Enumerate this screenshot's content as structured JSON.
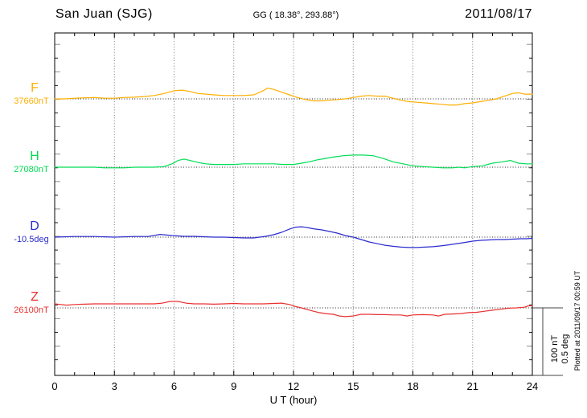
{
  "header": {
    "station": "San Juan (SJG)",
    "coordinates": "GG ( 18.38°, 293.88°)",
    "date": "2011/08/17"
  },
  "x_axis": {
    "title": "U T (hour)",
    "tick_labels": [
      "0",
      "3",
      "6",
      "9",
      "12",
      "15",
      "18",
      "21",
      "24"
    ],
    "min": 0,
    "max": 24,
    "major_step_hours": 3,
    "minor_step_hours": 1
  },
  "scale_bar": {
    "nt_label": "100 nT",
    "deg_label": "0.5 deg"
  },
  "footer_note": "Plotted at 2011/09/17 00:59 UT",
  "chart_data": {
    "type": "line",
    "title": "San Juan (SJG) magnetogram",
    "xlabel": "U T (hour)",
    "xlim": [
      0,
      24
    ],
    "legend_position": "left margin, one label per trace",
    "grid": "dotted vertical lines every 3 h; dotted horizontal baseline per trace",
    "scale": {
      "nT_per_division": 100,
      "deg_per_division": 0.5
    },
    "values_are": "offsets from each trace baseline (nT, or deg for D)",
    "series": [
      {
        "name": "F",
        "baseline_label": "37660nT",
        "baseline_value": 37660,
        "unit": "nT",
        "color": "#FFAE00",
        "points": [
          [
            0,
            0
          ],
          [
            0.5,
            0
          ],
          [
            1,
            1
          ],
          [
            1.5,
            1.5
          ],
          [
            2,
            2
          ],
          [
            2.5,
            1
          ],
          [
            3,
            1
          ],
          [
            3.5,
            2
          ],
          [
            4,
            2.5
          ],
          [
            4.5,
            3.5
          ],
          [
            5,
            5
          ],
          [
            5.5,
            8
          ],
          [
            6,
            12
          ],
          [
            6.4,
            13
          ],
          [
            6.8,
            11
          ],
          [
            7.2,
            8
          ],
          [
            7.6,
            7
          ],
          [
            8,
            6
          ],
          [
            8.5,
            5
          ],
          [
            9,
            5
          ],
          [
            9.5,
            5
          ],
          [
            10,
            6
          ],
          [
            10.4,
            11
          ],
          [
            10.7,
            16
          ],
          [
            11,
            14
          ],
          [
            11.4,
            10
          ],
          [
            11.8,
            6
          ],
          [
            12.2,
            2
          ],
          [
            12.6,
            -1
          ],
          [
            13,
            -3
          ],
          [
            13.4,
            -3
          ],
          [
            13.8,
            -2
          ],
          [
            14.2,
            -1
          ],
          [
            14.6,
            0
          ],
          [
            15,
            2
          ],
          [
            15.4,
            4
          ],
          [
            15.8,
            5
          ],
          [
            16.2,
            4
          ],
          [
            16.6,
            4
          ],
          [
            17,
            1
          ],
          [
            17.4,
            -2
          ],
          [
            17.8,
            -4
          ],
          [
            18.2,
            -5
          ],
          [
            18.6,
            -6
          ],
          [
            19,
            -7
          ],
          [
            19.4,
            -8
          ],
          [
            19.8,
            -9
          ],
          [
            20.2,
            -9
          ],
          [
            20.6,
            -7
          ],
          [
            21,
            -6
          ],
          [
            21.4,
            -4
          ],
          [
            21.8,
            -2
          ],
          [
            22.2,
            0
          ],
          [
            22.6,
            4
          ],
          [
            23,
            8
          ],
          [
            23.3,
            9
          ],
          [
            23.6,
            7
          ],
          [
            24,
            7
          ]
        ]
      },
      {
        "name": "H",
        "baseline_label": "27080nT",
        "baseline_value": 27080,
        "unit": "nT",
        "color": "#00DD55",
        "points": [
          [
            0,
            0
          ],
          [
            0.5,
            0
          ],
          [
            1,
            0
          ],
          [
            1.5,
            0
          ],
          [
            2,
            0
          ],
          [
            2.5,
            -1
          ],
          [
            3,
            -1
          ],
          [
            3.5,
            -1
          ],
          [
            4,
            0
          ],
          [
            4.5,
            0
          ],
          [
            5,
            0
          ],
          [
            5.5,
            1
          ],
          [
            5.9,
            5
          ],
          [
            6.2,
            10
          ],
          [
            6.5,
            12
          ],
          [
            6.8,
            10
          ],
          [
            7.2,
            7
          ],
          [
            7.6,
            5
          ],
          [
            8,
            4
          ],
          [
            8.5,
            4
          ],
          [
            9,
            4
          ],
          [
            9.5,
            5
          ],
          [
            10,
            5
          ],
          [
            10.5,
            5
          ],
          [
            11,
            5
          ],
          [
            11.5,
            4
          ],
          [
            12,
            4
          ],
          [
            12.4,
            6
          ],
          [
            12.8,
            8
          ],
          [
            13.2,
            11
          ],
          [
            13.6,
            13
          ],
          [
            14,
            15
          ],
          [
            14.5,
            17
          ],
          [
            15,
            18
          ],
          [
            15.5,
            18
          ],
          [
            16,
            17
          ],
          [
            16.5,
            13
          ],
          [
            17,
            8
          ],
          [
            17.5,
            5
          ],
          [
            18,
            2
          ],
          [
            18.5,
            1
          ],
          [
            19,
            0
          ],
          [
            19.5,
            -1
          ],
          [
            20,
            -1
          ],
          [
            20.3,
            0
          ],
          [
            20.6,
            -1
          ],
          [
            21,
            1
          ],
          [
            21.5,
            2
          ],
          [
            22,
            6
          ],
          [
            22.5,
            8
          ],
          [
            22.9,
            10
          ],
          [
            23.3,
            6
          ],
          [
            23.7,
            5
          ],
          [
            24,
            5
          ]
        ]
      },
      {
        "name": "D",
        "baseline_label": "-10.5deg",
        "baseline_value": -10.5,
        "unit": "deg",
        "color": "#2B2BCF",
        "points": [
          [
            0,
            0
          ],
          [
            1,
            0.005
          ],
          [
            2,
            0.005
          ],
          [
            3,
            0
          ],
          [
            4,
            0.005
          ],
          [
            4.7,
            0.005
          ],
          [
            5.3,
            0.02
          ],
          [
            5.9,
            0.012
          ],
          [
            6.5,
            0.006
          ],
          [
            7,
            0.006
          ],
          [
            7.5,
            0.003
          ],
          [
            8,
            0
          ],
          [
            8.5,
            0
          ],
          [
            9,
            -0.003
          ],
          [
            9.5,
            -0.006
          ],
          [
            10,
            -0.006
          ],
          [
            10.3,
            0
          ],
          [
            10.6,
            0.006
          ],
          [
            11,
            0.018
          ],
          [
            11.4,
            0.036
          ],
          [
            11.8,
            0.06
          ],
          [
            12.1,
            0.074
          ],
          [
            12.4,
            0.077
          ],
          [
            12.7,
            0.071
          ],
          [
            13,
            0.062
          ],
          [
            13.4,
            0.054
          ],
          [
            13.8,
            0.042
          ],
          [
            14.2,
            0.03
          ],
          [
            14.6,
            0.012
          ],
          [
            15,
            0
          ],
          [
            15.4,
            -0.018
          ],
          [
            15.8,
            -0.036
          ],
          [
            16.2,
            -0.048
          ],
          [
            16.6,
            -0.06
          ],
          [
            17,
            -0.068
          ],
          [
            17.4,
            -0.074
          ],
          [
            17.8,
            -0.077
          ],
          [
            18.2,
            -0.077
          ],
          [
            18.6,
            -0.074
          ],
          [
            19,
            -0.071
          ],
          [
            19.4,
            -0.065
          ],
          [
            19.8,
            -0.057
          ],
          [
            20.2,
            -0.048
          ],
          [
            20.6,
            -0.039
          ],
          [
            21,
            -0.03
          ],
          [
            21.4,
            -0.024
          ],
          [
            21.8,
            -0.021
          ],
          [
            22.2,
            -0.018
          ],
          [
            22.6,
            -0.018
          ],
          [
            23,
            -0.015
          ],
          [
            23.4,
            -0.012
          ],
          [
            23.7,
            -0.012
          ],
          [
            24,
            -0.009
          ]
        ]
      },
      {
        "name": "Z",
        "baseline_label": "26100nT",
        "baseline_value": 26100,
        "unit": "nT",
        "color": "#E93030",
        "points": [
          [
            0,
            6
          ],
          [
            0.3,
            5
          ],
          [
            0.6,
            4
          ],
          [
            1,
            5
          ],
          [
            1.5,
            5.5
          ],
          [
            2,
            6
          ],
          [
            2.5,
            6
          ],
          [
            3,
            6
          ],
          [
            3.5,
            6
          ],
          [
            4,
            6
          ],
          [
            4.5,
            6
          ],
          [
            5,
            6
          ],
          [
            5.4,
            7
          ],
          [
            5.8,
            9.5
          ],
          [
            6.2,
            9.5
          ],
          [
            6.6,
            7
          ],
          [
            7,
            6
          ],
          [
            7.5,
            6
          ],
          [
            8,
            5.5
          ],
          [
            8.5,
            6
          ],
          [
            9,
            6.5
          ],
          [
            9.5,
            6
          ],
          [
            10,
            6
          ],
          [
            10.5,
            6
          ],
          [
            11,
            6.5
          ],
          [
            11.4,
            7
          ],
          [
            11.8,
            5
          ],
          [
            12.1,
            2
          ],
          [
            12.4,
            0
          ],
          [
            12.7,
            -2.5
          ],
          [
            13,
            -5
          ],
          [
            13.3,
            -7
          ],
          [
            13.6,
            -8.5
          ],
          [
            14,
            -9.5
          ],
          [
            14.3,
            -12
          ],
          [
            14.6,
            -13
          ],
          [
            15,
            -12
          ],
          [
            15.4,
            -9.5
          ],
          [
            15.8,
            -9.5
          ],
          [
            16.2,
            -10
          ],
          [
            16.6,
            -10
          ],
          [
            17,
            -10.5
          ],
          [
            17.4,
            -10.5
          ],
          [
            17.7,
            -12
          ],
          [
            18,
            -10.5
          ],
          [
            18.5,
            -10
          ],
          [
            19,
            -10.5
          ],
          [
            19.3,
            -12
          ],
          [
            19.6,
            -9.5
          ],
          [
            20,
            -9
          ],
          [
            20.4,
            -8.5
          ],
          [
            20.8,
            -7
          ],
          [
            21.2,
            -6.5
          ],
          [
            21.6,
            -5
          ],
          [
            22,
            -3.5
          ],
          [
            22.4,
            -2
          ],
          [
            22.8,
            -0.5
          ],
          [
            23.2,
            0
          ],
          [
            23.6,
            1
          ],
          [
            23.8,
            3
          ],
          [
            24,
            3.5
          ]
        ]
      }
    ]
  }
}
